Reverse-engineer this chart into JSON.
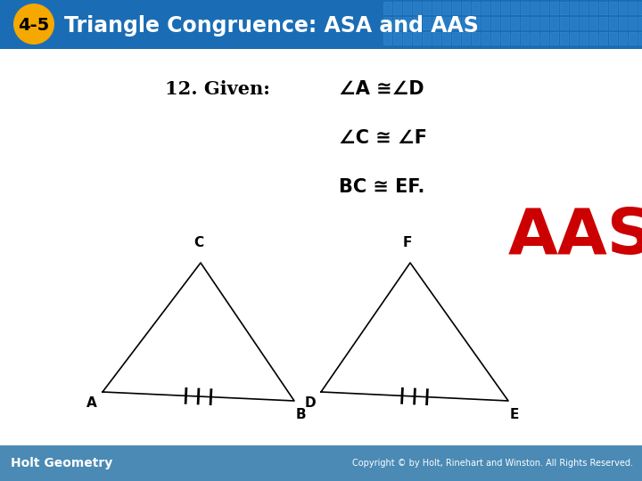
{
  "header_bg": "#1a6db5",
  "header_text": "Triangle Congruence: ASA and AAS",
  "header_num": "4-5",
  "header_num_bg": "#f5a800",
  "body_bg": "#ffffff",
  "footer_bg": "#4a8ab5",
  "footer_left": "Holt Geometry",
  "footer_right": "Copyright © by Holt, Rinehart and Winston. All Rights Reserved.",
  "given_label": "12. Given:",
  "line1": "∠A ≅∠D",
  "line2": "∠C ≅ ∠F",
  "line3": "BC ≅ EF.",
  "answer": "AAS",
  "text_color": "#000000",
  "aas_color": "#cc0000"
}
